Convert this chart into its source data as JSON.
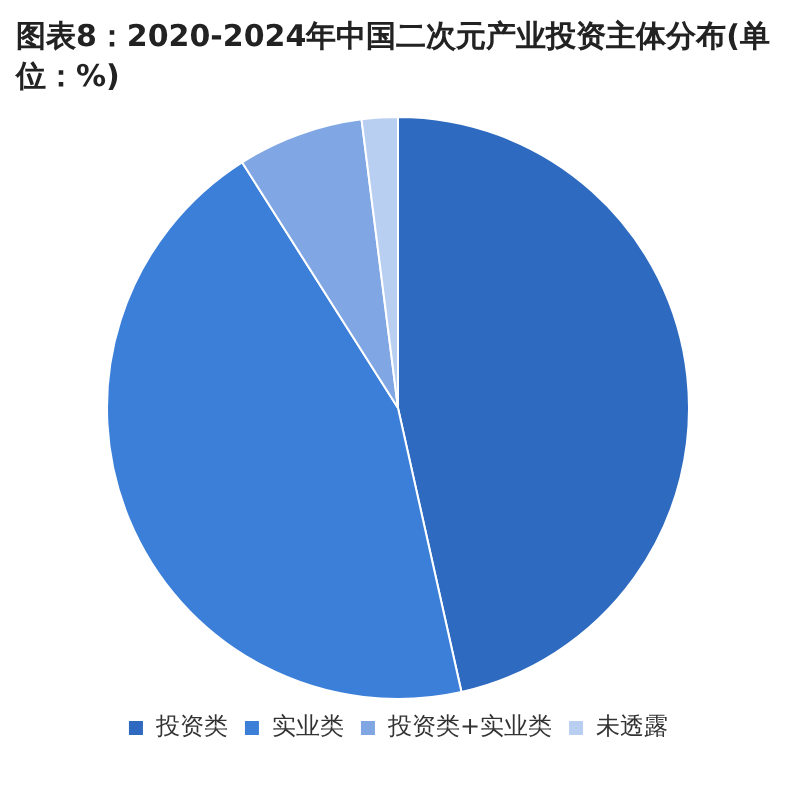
{
  "chart_data": {
    "type": "pie",
    "title": "图表8：2020-2024年中国二次元产业投资主体分布(单位：%)",
    "categories": [
      "投资类",
      "实业类",
      "投资类+实业类",
      "未透露"
    ],
    "values": [
      46.5,
      44.5,
      7,
      2
    ],
    "colors": [
      "#2e6bc0",
      "#3b7fd9",
      "#80a7e4",
      "#b9cff1"
    ],
    "legend": "bottom"
  }
}
